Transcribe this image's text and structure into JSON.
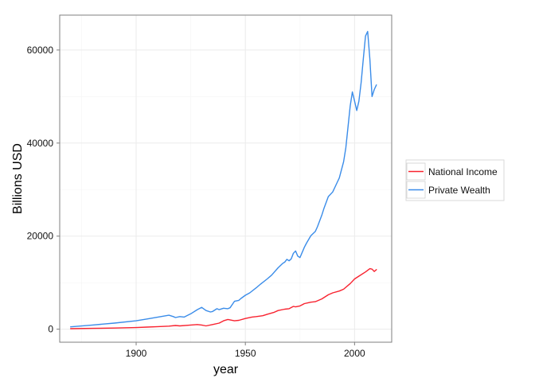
{
  "chart_data": {
    "type": "line",
    "title": "",
    "xlabel": "year",
    "ylabel": "Billions USD",
    "xlim": [
      1865,
      2017
    ],
    "ylim": [
      -2800,
      67500
    ],
    "x_ticks": [
      1900,
      1950,
      2000
    ],
    "x_tick_labels": [
      "1900",
      "1950",
      "2000"
    ],
    "y_ticks": [
      0,
      20000,
      40000,
      60000
    ],
    "y_tick_labels": [
      "0",
      "20000",
      "40000",
      "60000"
    ],
    "grid": true,
    "legend_position": "right",
    "series": [
      {
        "name": "National Income",
        "color": "#f8222f",
        "x": [
          1870,
          1880,
          1890,
          1900,
          1905,
          1910,
          1915,
          1918,
          1920,
          1925,
          1928,
          1930,
          1932,
          1935,
          1938,
          1940,
          1942,
          1945,
          1947,
          1950,
          1953,
          1955,
          1958,
          1960,
          1963,
          1965,
          1968,
          1970,
          1972,
          1973,
          1975,
          1977,
          1980,
          1982,
          1985,
          1988,
          1990,
          1993,
          1995,
          1998,
          2000,
          2002,
          2005,
          2007,
          2008,
          2009,
          2010
        ],
        "y": [
          100,
          170,
          250,
          350,
          450,
          550,
          650,
          800,
          700,
          900,
          1000,
          900,
          700,
          1000,
          1300,
          1800,
          2100,
          1800,
          1900,
          2300,
          2600,
          2700,
          2900,
          3200,
          3600,
          4000,
          4300,
          4400,
          4900,
          4800,
          5000,
          5500,
          5800,
          5900,
          6500,
          7400,
          7800,
          8200,
          8600,
          9800,
          10800,
          11400,
          12300,
          13000,
          12900,
          12400,
          12800
        ]
      },
      {
        "name": "Private Wealth",
        "color": "#3a8ce9",
        "x": [
          1870,
          1880,
          1890,
          1900,
          1905,
          1910,
          1915,
          1917,
          1918,
          1920,
          1922,
          1925,
          1928,
          1930,
          1932,
          1934,
          1935,
          1937,
          1938,
          1940,
          1942,
          1943,
          1945,
          1947,
          1948,
          1950,
          1952,
          1955,
          1957,
          1960,
          1962,
          1965,
          1967,
          1968,
          1969,
          1970,
          1971,
          1972,
          1973,
          1974,
          1975,
          1977,
          1978,
          1980,
          1982,
          1983,
          1985,
          1986,
          1988,
          1990,
          1992,
          1993,
          1995,
          1996,
          1998,
          1999,
          2000,
          2001,
          2002,
          2003,
          2004,
          2005,
          2006,
          2007,
          2008,
          2009,
          2010
        ],
        "y": [
          500,
          900,
          1300,
          1800,
          2200,
          2600,
          3000,
          2700,
          2500,
          2700,
          2600,
          3300,
          4200,
          4700,
          4000,
          3700,
          3800,
          4400,
          4200,
          4500,
          4400,
          4600,
          6000,
          6200,
          6600,
          7300,
          7800,
          8900,
          9700,
          10800,
          11600,
          13200,
          14100,
          14400,
          15000,
          14700,
          15100,
          16300,
          16800,
          15700,
          15400,
          17600,
          18500,
          20100,
          21000,
          22000,
          24500,
          26000,
          28500,
          29500,
          31500,
          32500,
          36000,
          39000,
          48000,
          51000,
          49000,
          47000,
          49000,
          53000,
          58000,
          63000,
          64000,
          58000,
          50000,
          51500,
          52500
        ]
      }
    ]
  }
}
